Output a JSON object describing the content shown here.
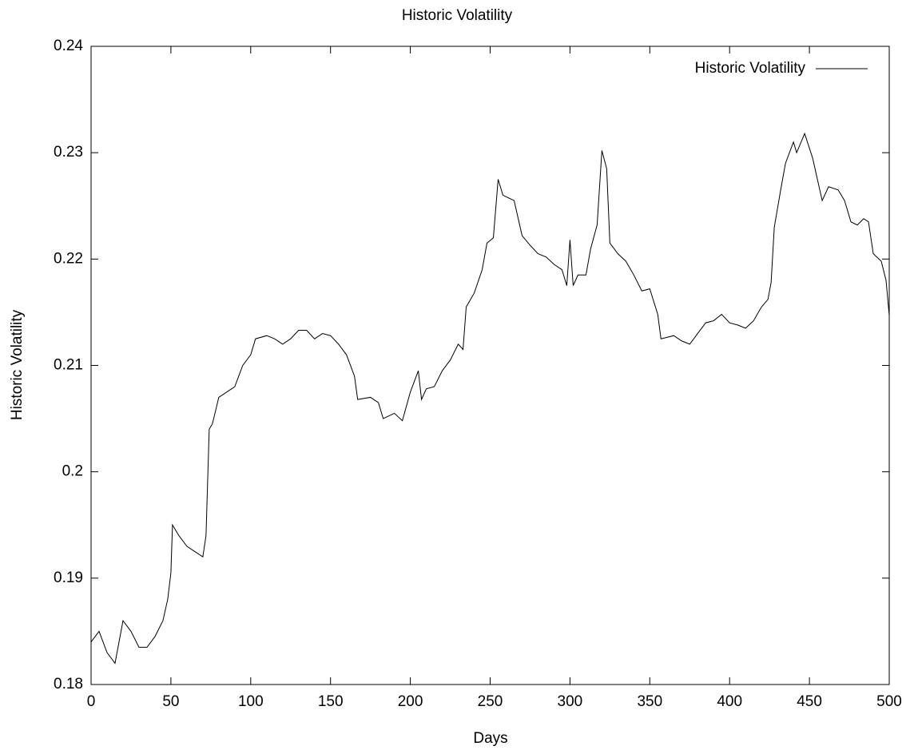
{
  "chart_data": {
    "type": "line",
    "title": "Historic Volatility",
    "xlabel": "Days",
    "ylabel": "Historic Volatility",
    "legend": "top-right",
    "grid": false,
    "xlim": [
      0,
      500
    ],
    "xticks": [
      0,
      50,
      100,
      150,
      200,
      250,
      300,
      350,
      400,
      450,
      500
    ],
    "ylim": [
      0.18,
      0.24
    ],
    "yticks": [
      0.18,
      0.19,
      0.2,
      0.21,
      0.22,
      0.23,
      0.24
    ],
    "x": [
      0,
      5,
      10,
      15,
      20,
      25,
      30,
      35,
      40,
      45,
      48,
      50,
      51,
      55,
      60,
      65,
      70,
      72,
      74,
      76,
      80,
      85,
      90,
      95,
      100,
      103,
      110,
      115,
      120,
      125,
      130,
      135,
      140,
      145,
      150,
      155,
      160,
      165,
      167,
      175,
      180,
      183,
      190,
      195,
      200,
      205,
      207,
      210,
      215,
      220,
      225,
      230,
      233,
      235,
      240,
      245,
      248,
      252,
      255,
      258,
      265,
      270,
      275,
      280,
      285,
      290,
      295,
      298,
      300,
      302,
      305,
      310,
      313,
      317,
      320,
      323,
      325,
      330,
      335,
      340,
      345,
      350,
      355,
      357,
      365,
      370,
      375,
      380,
      385,
      390,
      395,
      400,
      405,
      410,
      415,
      420,
      424,
      426,
      428,
      432,
      435,
      440,
      442,
      447,
      452,
      455,
      458,
      462,
      468,
      472,
      476,
      480,
      484,
      487,
      490,
      495,
      498,
      500
    ],
    "series": [
      {
        "name": "Historic Volatility",
        "color": "#000000",
        "values": [
          0.184,
          0.185,
          0.183,
          0.182,
          0.186,
          0.185,
          0.1835,
          0.1835,
          0.1845,
          0.186,
          0.188,
          0.1905,
          0.195,
          0.194,
          0.193,
          0.1925,
          0.192,
          0.194,
          0.204,
          0.2045,
          0.207,
          0.2075,
          0.208,
          0.21,
          0.211,
          0.2125,
          0.2128,
          0.2125,
          0.212,
          0.2125,
          0.2133,
          0.2133,
          0.2125,
          0.213,
          0.2128,
          0.212,
          0.211,
          0.209,
          0.2068,
          0.207,
          0.2065,
          0.205,
          0.2055,
          0.2048,
          0.2075,
          0.2095,
          0.2068,
          0.2078,
          0.208,
          0.2095,
          0.2105,
          0.212,
          0.2115,
          0.2155,
          0.2168,
          0.219,
          0.2215,
          0.222,
          0.2275,
          0.226,
          0.2255,
          0.2222,
          0.2213,
          0.2205,
          0.2202,
          0.2195,
          0.219,
          0.2175,
          0.2218,
          0.2175,
          0.2185,
          0.2185,
          0.221,
          0.2232,
          0.2302,
          0.2285,
          0.2215,
          0.2205,
          0.2198,
          0.2185,
          0.217,
          0.2172,
          0.2148,
          0.2125,
          0.2128,
          0.2123,
          0.212,
          0.213,
          0.214,
          0.2142,
          0.2148,
          0.214,
          0.2138,
          0.2135,
          0.2142,
          0.2155,
          0.2162,
          0.2178,
          0.223,
          0.2265,
          0.229,
          0.231,
          0.23,
          0.2318,
          0.2295,
          0.2275,
          0.2255,
          0.2268,
          0.2265,
          0.2255,
          0.2235,
          0.2232,
          0.2238,
          0.2235,
          0.2205,
          0.2198,
          0.218,
          0.2147
        ]
      }
    ]
  }
}
